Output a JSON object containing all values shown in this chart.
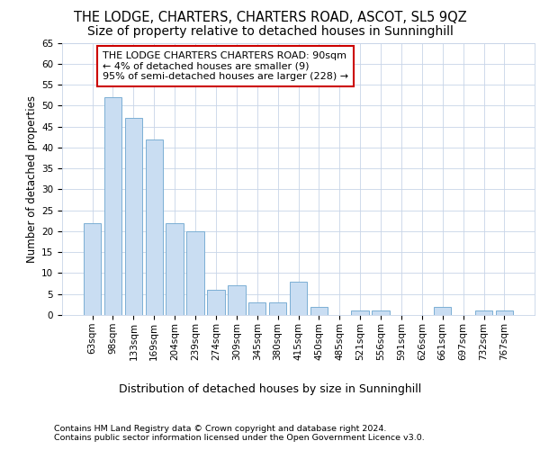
{
  "title1": "THE LODGE, CHARTERS, CHARTERS ROAD, ASCOT, SL5 9QZ",
  "title2": "Size of property relative to detached houses in Sunninghill",
  "xlabel": "Distribution of detached houses by size in Sunninghill",
  "ylabel": "Number of detached properties",
  "categories": [
    "63sqm",
    "98sqm",
    "133sqm",
    "169sqm",
    "204sqm",
    "239sqm",
    "274sqm",
    "309sqm",
    "345sqm",
    "380sqm",
    "415sqm",
    "450sqm",
    "485sqm",
    "521sqm",
    "556sqm",
    "591sqm",
    "626sqm",
    "661sqm",
    "697sqm",
    "732sqm",
    "767sqm"
  ],
  "values": [
    22,
    52,
    47,
    42,
    22,
    20,
    6,
    7,
    3,
    3,
    8,
    2,
    0,
    1,
    1,
    0,
    0,
    2,
    0,
    1,
    1
  ],
  "bar_color": "#c9ddf2",
  "bar_edge_color": "#7bafd4",
  "annotation_box_color": "#ffffff",
  "annotation_box_edge_color": "#cc0000",
  "annotation_text": "THE LODGE CHARTERS CHARTERS ROAD: 90sqm\n← 4% of detached houses are smaller (9)\n95% of semi-detached houses are larger (228) →",
  "ylim": [
    0,
    65
  ],
  "yticks": [
    0,
    5,
    10,
    15,
    20,
    25,
    30,
    35,
    40,
    45,
    50,
    55,
    60,
    65
  ],
  "footer1": "Contains HM Land Registry data © Crown copyright and database right 2024.",
  "footer2": "Contains public sector information licensed under the Open Government Licence v3.0.",
  "bg_color": "#ffffff",
  "grid_color": "#c8d4e8",
  "title1_fontsize": 10.5,
  "title2_fontsize": 10,
  "xlabel_fontsize": 9,
  "ylabel_fontsize": 8.5,
  "tick_fontsize": 7.5,
  "annotation_fontsize": 8,
  "footer_fontsize": 6.8
}
